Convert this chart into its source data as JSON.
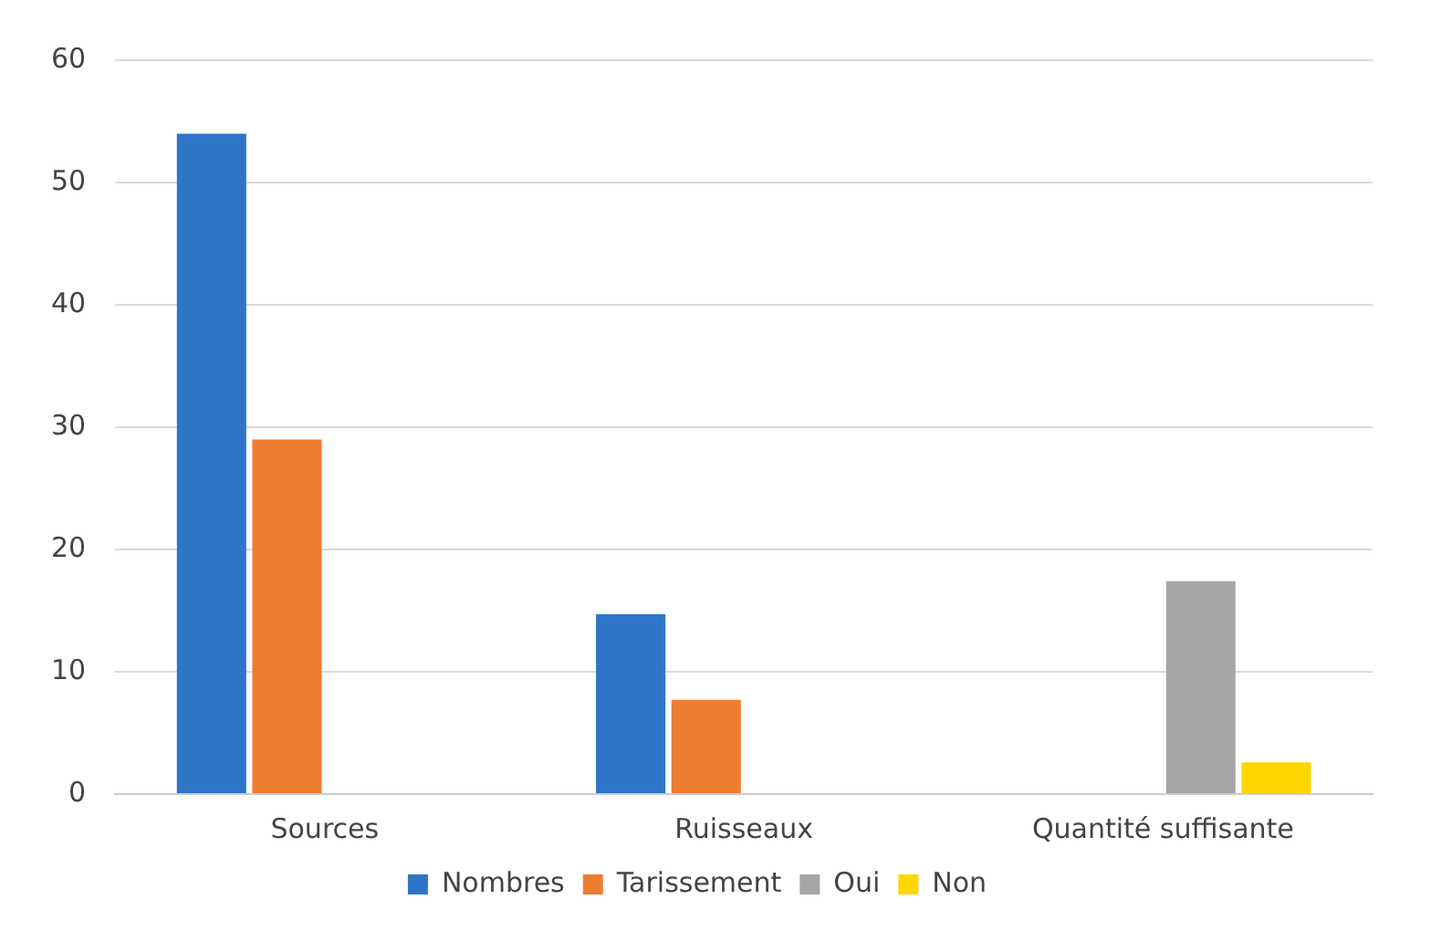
{
  "chart_data": {
    "type": "bar",
    "categories": [
      "Sources",
      "Ruisseaux",
      "Quantité suffisante"
    ],
    "series": [
      {
        "name": "Nombres",
        "color": "#2e75c8",
        "values": [
          54,
          14.7,
          null
        ]
      },
      {
        "name": "Tarissement",
        "color": "#ed7d31",
        "values": [
          29,
          7.7,
          null
        ]
      },
      {
        "name": "Oui",
        "color": "#a5a5a5",
        "values": [
          null,
          null,
          17.4
        ]
      },
      {
        "name": "Non",
        "color": "#ffd500",
        "values": [
          null,
          null,
          2.6
        ]
      }
    ],
    "ylim": [
      0,
      60
    ],
    "yticks": [
      0,
      10,
      20,
      30,
      40,
      50,
      60
    ],
    "grid": "y",
    "legend": "bottom"
  }
}
